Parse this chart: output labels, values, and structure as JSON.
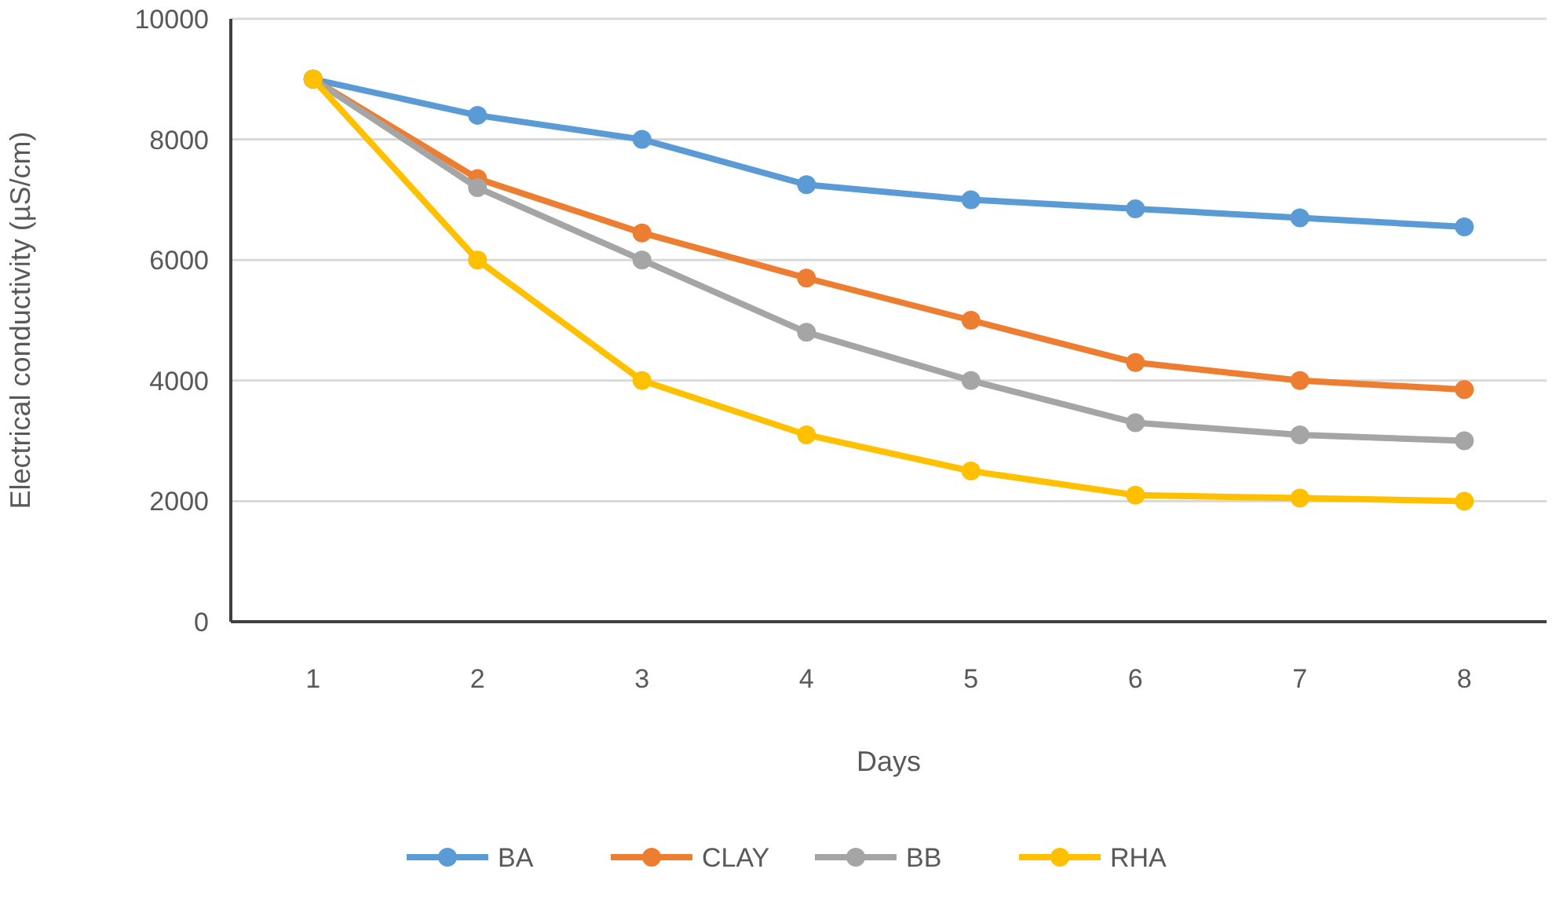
{
  "chart_data": {
    "type": "line",
    "xlabel": "Days",
    "ylabel": "Electrical conductivity (µS/cm)",
    "categories": [
      "1",
      "2",
      "3",
      "4",
      "5",
      "6",
      "7",
      "8"
    ],
    "ylim": [
      0,
      10000
    ],
    "yticks": [
      0,
      2000,
      4000,
      6000,
      8000,
      10000
    ],
    "grid": "y",
    "legend": "bottom",
    "marker": "circle",
    "line_style": "solid",
    "series": [
      {
        "name": "BA",
        "color": "#5b9bd5",
        "values": [
          9000,
          8400,
          8000,
          7250,
          7000,
          6850,
          6700,
          6550
        ]
      },
      {
        "name": "CLAY",
        "color": "#ed7d31",
        "values": [
          9000,
          7350,
          6450,
          5700,
          5000,
          4300,
          4000,
          3850
        ]
      },
      {
        "name": "BB",
        "color": "#a5a5a5",
        "values": [
          9000,
          7200,
          6000,
          4800,
          4000,
          3300,
          3100,
          3000
        ]
      },
      {
        "name": "RHA",
        "color": "#ffc000",
        "values": [
          9000,
          6000,
          4000,
          3100,
          2500,
          2100,
          2050,
          2000
        ]
      }
    ]
  }
}
